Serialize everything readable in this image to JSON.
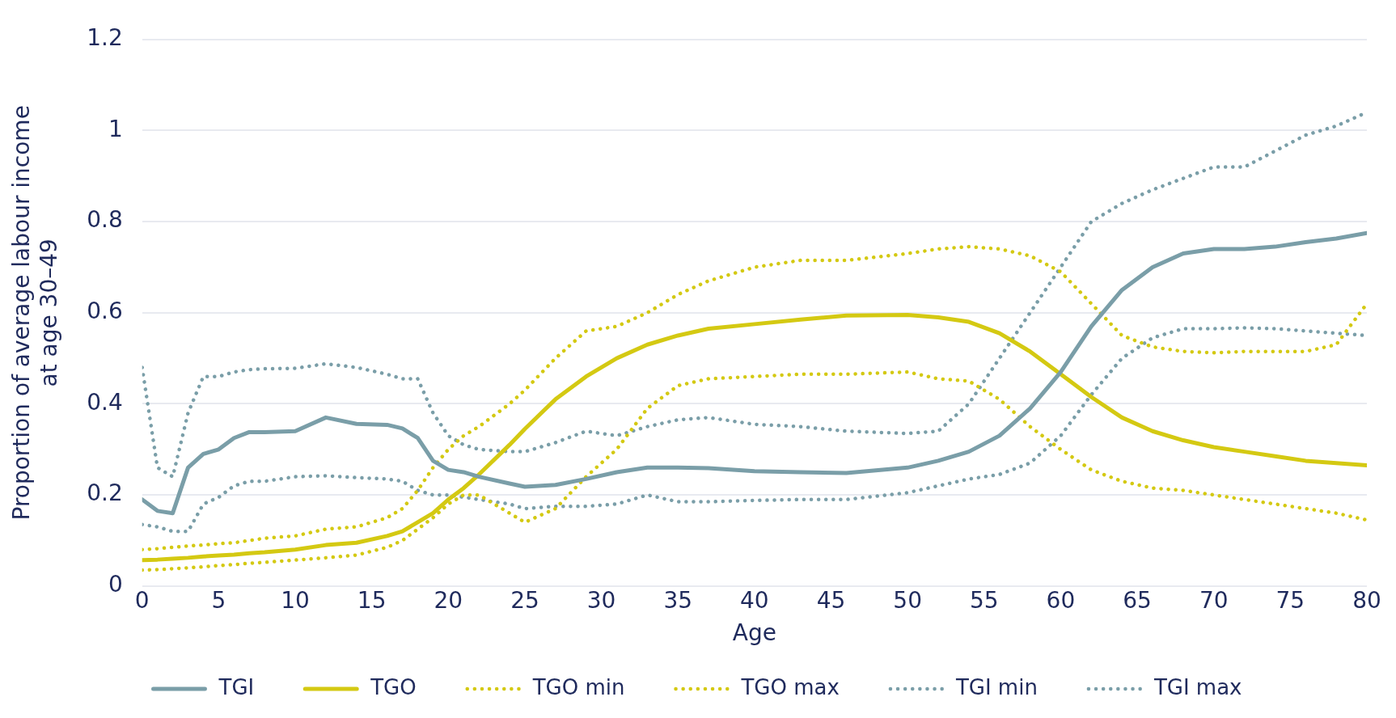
{
  "chart_data": {
    "type": "line",
    "xlabel": "Age",
    "ylabel": "Proportion of average labour income at age 30–49",
    "x": [
      0,
      1,
      2,
      3,
      4,
      5,
      6,
      7,
      8,
      10,
      12,
      14,
      16,
      17,
      18,
      19,
      20,
      21,
      22,
      24,
      25,
      27,
      29,
      31,
      33,
      35,
      37,
      40,
      43,
      46,
      50,
      52,
      54,
      56,
      58,
      60,
      62,
      64,
      66,
      68,
      70,
      72,
      74,
      76,
      78,
      80
    ],
    "xlim": [
      0,
      80
    ],
    "xticks": [
      0,
      5,
      10,
      15,
      20,
      25,
      30,
      35,
      40,
      45,
      50,
      55,
      60,
      65,
      70,
      75,
      80
    ],
    "ylim": [
      0,
      1.2
    ],
    "yticks": [
      0,
      0.2,
      0.4,
      0.6,
      0.8,
      1,
      1.2
    ],
    "grid": "y",
    "legend": "bottom",
    "marker": "none",
    "series": [
      {
        "name": "TGI",
        "color": "#7a9ea8",
        "line_style": "solid",
        "values": [
          0.19,
          0.165,
          0.16,
          0.26,
          0.29,
          0.3,
          0.325,
          0.338,
          0.338,
          0.34,
          0.37,
          0.356,
          0.354,
          0.346,
          0.325,
          0.275,
          0.255,
          0.25,
          0.24,
          0.225,
          0.218,
          0.222,
          0.235,
          0.25,
          0.26,
          0.26,
          0.259,
          0.252,
          0.25,
          0.248,
          0.26,
          0.275,
          0.295,
          0.33,
          0.39,
          0.47,
          0.57,
          0.65,
          0.7,
          0.73,
          0.74,
          0.74,
          0.745,
          0.755,
          0.763,
          0.775
        ]
      },
      {
        "name": "TGO",
        "color": "#d4c912",
        "line_style": "solid",
        "values": [
          0.057,
          0.058,
          0.06,
          0.062,
          0.065,
          0.067,
          0.069,
          0.072,
          0.074,
          0.08,
          0.09,
          0.095,
          0.11,
          0.12,
          0.14,
          0.16,
          0.19,
          0.215,
          0.245,
          0.31,
          0.345,
          0.41,
          0.46,
          0.5,
          0.53,
          0.55,
          0.565,
          0.575,
          0.585,
          0.594,
          0.595,
          0.59,
          0.58,
          0.555,
          0.515,
          0.465,
          0.415,
          0.37,
          0.34,
          0.32,
          0.305,
          0.295,
          0.285,
          0.275,
          0.27,
          0.265
        ]
      },
      {
        "name": "TGO min",
        "color": "#d4c912",
        "line_style": "dotted",
        "values": [
          0.035,
          0.036,
          0.038,
          0.04,
          0.042,
          0.045,
          0.047,
          0.05,
          0.052,
          0.057,
          0.062,
          0.068,
          0.085,
          0.1,
          0.125,
          0.15,
          0.18,
          0.2,
          0.2,
          0.16,
          0.14,
          0.17,
          0.24,
          0.3,
          0.39,
          0.44,
          0.455,
          0.46,
          0.465,
          0.465,
          0.47,
          0.455,
          0.45,
          0.41,
          0.35,
          0.3,
          0.255,
          0.23,
          0.215,
          0.21,
          0.2,
          0.19,
          0.18,
          0.17,
          0.16,
          0.145
        ]
      },
      {
        "name": "TGO max",
        "color": "#d4c912",
        "line_style": "dotted",
        "values": [
          0.08,
          0.082,
          0.085,
          0.088,
          0.09,
          0.093,
          0.095,
          0.1,
          0.105,
          0.11,
          0.125,
          0.13,
          0.15,
          0.17,
          0.21,
          0.26,
          0.3,
          0.33,
          0.35,
          0.4,
          0.43,
          0.5,
          0.56,
          0.57,
          0.6,
          0.64,
          0.67,
          0.7,
          0.715,
          0.715,
          0.73,
          0.74,
          0.745,
          0.74,
          0.725,
          0.69,
          0.62,
          0.55,
          0.525,
          0.515,
          0.512,
          0.515,
          0.515,
          0.515,
          0.53,
          0.62
        ]
      },
      {
        "name": "TGI min",
        "color": "#7a9ea8",
        "line_style": "dotted",
        "values": [
          0.135,
          0.13,
          0.12,
          0.12,
          0.18,
          0.195,
          0.22,
          0.23,
          0.23,
          0.24,
          0.242,
          0.238,
          0.235,
          0.23,
          0.21,
          0.2,
          0.2,
          0.195,
          0.19,
          0.18,
          0.17,
          0.175,
          0.175,
          0.18,
          0.2,
          0.185,
          0.185,
          0.188,
          0.19,
          0.19,
          0.205,
          0.22,
          0.235,
          0.245,
          0.27,
          0.33,
          0.42,
          0.5,
          0.545,
          0.565,
          0.565,
          0.567,
          0.565,
          0.56,
          0.555,
          0.55
        ]
      },
      {
        "name": "TGI max",
        "color": "#7a9ea8",
        "line_style": "dotted",
        "values": [
          0.48,
          0.26,
          0.24,
          0.38,
          0.46,
          0.46,
          0.47,
          0.475,
          0.477,
          0.478,
          0.488,
          0.48,
          0.465,
          0.455,
          0.455,
          0.38,
          0.33,
          0.31,
          0.3,
          0.295,
          0.295,
          0.315,
          0.34,
          0.33,
          0.35,
          0.365,
          0.37,
          0.355,
          0.35,
          0.34,
          0.335,
          0.34,
          0.4,
          0.5,
          0.6,
          0.7,
          0.8,
          0.84,
          0.87,
          0.895,
          0.92,
          0.92,
          0.955,
          0.99,
          1.01,
          1.04
        ]
      }
    ]
  }
}
